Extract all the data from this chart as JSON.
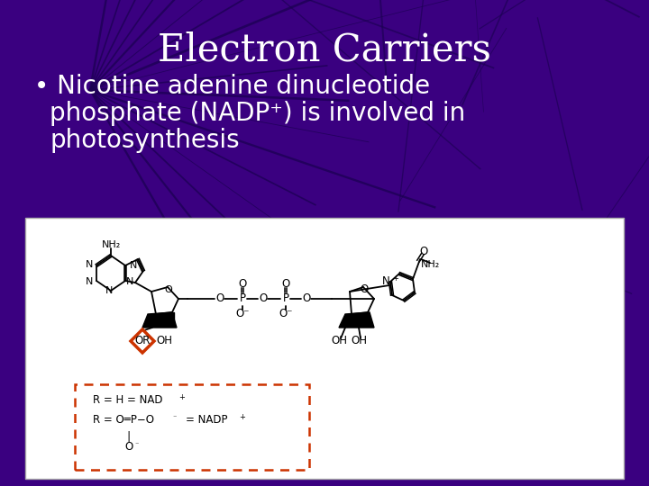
{
  "title": "Electron Carriers",
  "bullet_line1": "Nicotine adenine dinucleotide",
  "bullet_line2": "phosphate (NADP⁺) is involved in",
  "bullet_line3": "photosynthesis",
  "title_color": "#ffffff",
  "text_color": "#ffffff",
  "title_fontsize": 30,
  "bullet_fontsize": 20,
  "bg_color": "#3a0080",
  "diagram_facecolor": "#ffffff",
  "diagram_border": "#aaaaaa",
  "red_color": "#cc3300",
  "black": "#000000"
}
